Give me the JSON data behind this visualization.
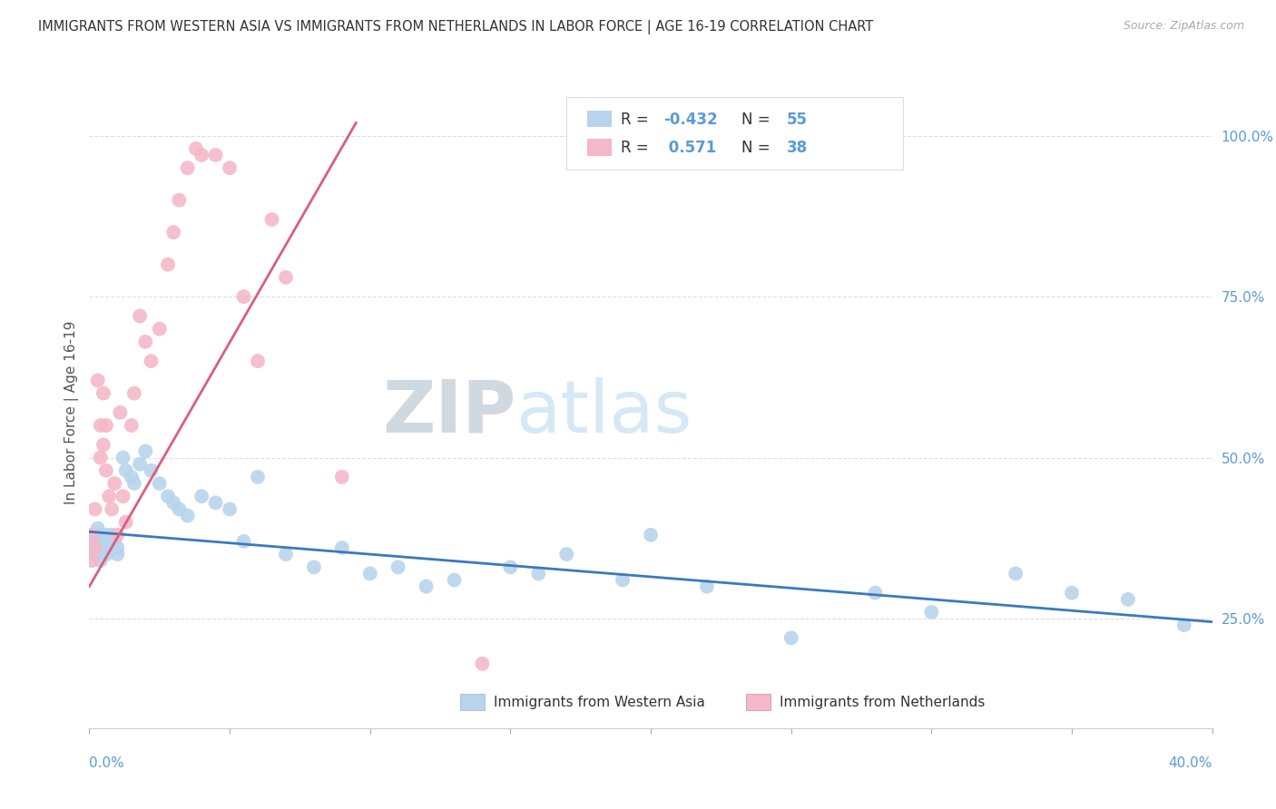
{
  "title": "IMMIGRANTS FROM WESTERN ASIA VS IMMIGRANTS FROM NETHERLANDS IN LABOR FORCE | AGE 16-19 CORRELATION CHART",
  "source": "Source: ZipAtlas.com",
  "ylabel": "In Labor Force | Age 16-19",
  "right_yticks": [
    "100.0%",
    "75.0%",
    "50.0%",
    "25.0%"
  ],
  "right_ytick_vals": [
    1.0,
    0.75,
    0.5,
    0.25
  ],
  "color_blue": "#b8d4ed",
  "color_pink": "#f5b8c8",
  "color_line_blue": "#3a7abf",
  "color_line_pink": "#d9607a",
  "color_title": "#333333",
  "color_source": "#aaaaaa",
  "color_right_axis": "#5b9bd5",
  "watermark_zip": "ZIP",
  "watermark_atlas": "atlas",
  "watermark_color": "#d5e8f5",
  "xmin": 0.0,
  "xmax": 0.4,
  "ymin": 0.08,
  "ymax": 1.06,
  "blue_x": [
    0.001,
    0.001,
    0.002,
    0.002,
    0.003,
    0.003,
    0.004,
    0.004,
    0.005,
    0.005,
    0.006,
    0.006,
    0.007,
    0.007,
    0.008,
    0.009,
    0.01,
    0.01,
    0.012,
    0.013,
    0.015,
    0.016,
    0.018,
    0.02,
    0.022,
    0.025,
    0.028,
    0.03,
    0.032,
    0.035,
    0.04,
    0.045,
    0.05,
    0.055,
    0.06,
    0.07,
    0.08,
    0.09,
    0.1,
    0.11,
    0.12,
    0.13,
    0.15,
    0.16,
    0.17,
    0.19,
    0.2,
    0.22,
    0.25,
    0.28,
    0.3,
    0.33,
    0.35,
    0.37,
    0.39
  ],
  "blue_y": [
    0.38,
    0.36,
    0.37,
    0.35,
    0.39,
    0.36,
    0.38,
    0.34,
    0.37,
    0.36,
    0.38,
    0.35,
    0.37,
    0.36,
    0.38,
    0.37,
    0.36,
    0.35,
    0.5,
    0.48,
    0.47,
    0.46,
    0.49,
    0.51,
    0.48,
    0.46,
    0.44,
    0.43,
    0.42,
    0.41,
    0.44,
    0.43,
    0.42,
    0.37,
    0.47,
    0.35,
    0.33,
    0.36,
    0.32,
    0.33,
    0.3,
    0.31,
    0.33,
    0.32,
    0.35,
    0.31,
    0.38,
    0.3,
    0.22,
    0.29,
    0.26,
    0.32,
    0.29,
    0.28,
    0.24
  ],
  "pink_x": [
    0.001,
    0.001,
    0.002,
    0.002,
    0.003,
    0.004,
    0.004,
    0.005,
    0.005,
    0.006,
    0.006,
    0.007,
    0.008,
    0.009,
    0.01,
    0.011,
    0.012,
    0.013,
    0.015,
    0.016,
    0.018,
    0.02,
    0.022,
    0.025,
    0.028,
    0.03,
    0.032,
    0.035,
    0.038,
    0.04,
    0.045,
    0.05,
    0.055,
    0.06,
    0.065,
    0.07,
    0.09,
    0.14
  ],
  "pink_y": [
    0.38,
    0.34,
    0.42,
    0.36,
    0.62,
    0.55,
    0.5,
    0.6,
    0.52,
    0.55,
    0.48,
    0.44,
    0.42,
    0.46,
    0.38,
    0.57,
    0.44,
    0.4,
    0.55,
    0.6,
    0.72,
    0.68,
    0.65,
    0.7,
    0.8,
    0.85,
    0.9,
    0.95,
    0.98,
    0.97,
    0.97,
    0.95,
    0.75,
    0.65,
    0.87,
    0.78,
    0.47,
    0.18
  ],
  "blue_trendline_x": [
    0.0,
    0.4
  ],
  "blue_trendline_y": [
    0.385,
    0.245
  ],
  "pink_trendline_x": [
    0.0,
    0.095
  ],
  "pink_trendline_y": [
    0.3,
    1.02
  ]
}
